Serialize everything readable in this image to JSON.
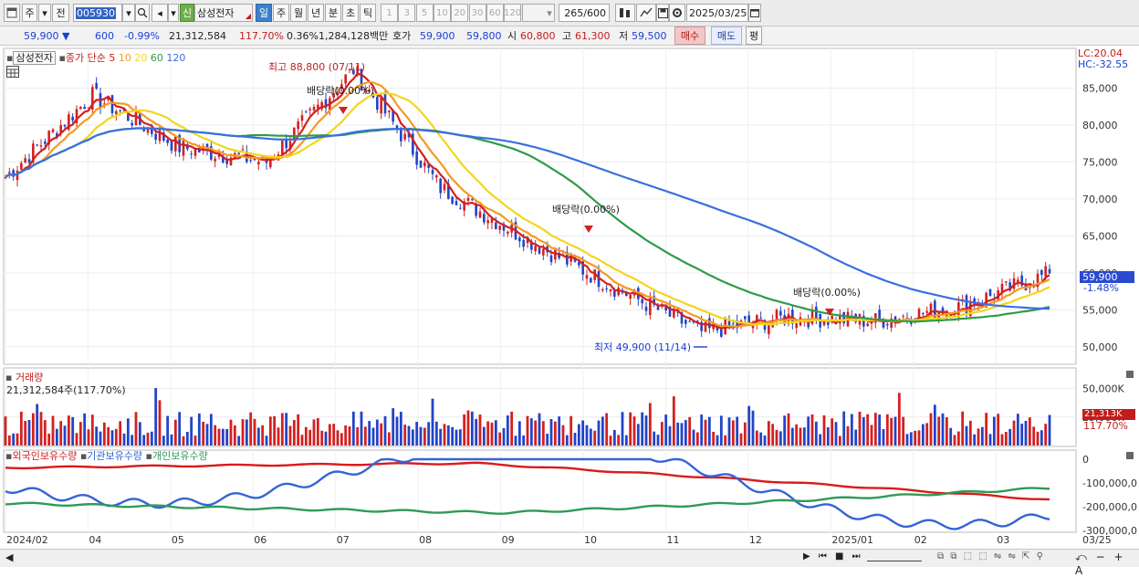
{
  "toolbar": {
    "window_icon": "window-icon",
    "market_label": "주",
    "period_label": "전",
    "code_value": "005930",
    "company_name": "삼성전자",
    "new_badge": "신",
    "period_tabs": [
      "일",
      "주",
      "월",
      "년",
      "분",
      "초",
      "틱"
    ],
    "selected_period": "일",
    "interval_buttons": [
      "1",
      "3",
      "5",
      "10",
      "20",
      "30",
      "60",
      "120"
    ],
    "count_value": "265/600",
    "date_value": "2025/03/25"
  },
  "infobar": {
    "price": "59,900",
    "change": "600",
    "change_pct": "-0.99%",
    "volume": "21,312,584",
    "volume_ratio": "117.70%",
    "turnover": "0.36%",
    "trade_amount": "1,284,128백만",
    "quote_label": "호가",
    "ask": "59,900",
    "bid": "59,800",
    "open_label": "시",
    "open": "60,800",
    "high_label": "고",
    "high": "61,300",
    "low_label": "저",
    "low": "59,500",
    "buy_button": "매수",
    "sell_button": "매도",
    "avg_button": "평"
  },
  "price_pane": {
    "legend_stock": "삼성전자",
    "legend_ma_prefix": "종가 단순",
    "ma_periods": [
      "5",
      "10",
      "20",
      "60",
      "120"
    ],
    "ma_colors": [
      "#d42020",
      "#f59a1f",
      "#f2d61c",
      "#2e9b47",
      "#3b6fe0"
    ],
    "high_marker": "최고 88,800 (07/11)",
    "low_marker": "최저 49,900 (11/14)",
    "dividend_labels": [
      "배당락(0.00%)",
      "배당락(0.00%)",
      "배당락(0.00%)"
    ],
    "lc_label": "LC:20.04",
    "hc_label": "HC:-32.55",
    "current_price_tag": "59,900",
    "current_change_tag": "-1.48%",
    "y_ticks": [
      "85,000",
      "80,000",
      "75,000",
      "70,000",
      "65,000",
      "60,000",
      "55,000",
      "50,000"
    ]
  },
  "volume_pane": {
    "title": "거래량",
    "current_label": "21,312,584주(117.70%)",
    "y_ticks": [
      "50,000K",
      "25,000K"
    ],
    "tag_value": "21,313K",
    "tag_pct": "117.70%"
  },
  "holdings_pane": {
    "legend": [
      "외국인보유수량",
      "기관보유수량",
      "개인보유수량"
    ],
    "colors": [
      "#d91b1b",
      "#3564d6",
      "#2f9a57"
    ],
    "y_ticks": [
      "0",
      "-100,000,0",
      "-200,000,0",
      "-300,000,0"
    ]
  },
  "x_axis": {
    "labels": [
      "2024/02",
      "04",
      "05",
      "06",
      "07",
      "08",
      "09",
      "10",
      "11",
      "12",
      "2025/01",
      "02",
      "03"
    ],
    "last_label": "03/25"
  },
  "chart_data": {
    "type": "candlestick",
    "title": "삼성전자",
    "categories": [
      "2024/02",
      "04",
      "05",
      "06",
      "07",
      "08",
      "09",
      "10",
      "11",
      "12",
      "2025/01",
      "02",
      "03",
      "03/25"
    ],
    "ohlc_anchor_closes": [
      73000,
      84000,
      77000,
      75000,
      87500,
      71500,
      64500,
      58000,
      52000,
      54000,
      53500,
      55500,
      59900
    ],
    "price_range": [
      48000,
      90000
    ],
    "last_close": 59900,
    "series": [
      {
        "name": "5",
        "color": "#d42020"
      },
      {
        "name": "10",
        "color": "#f59a1f"
      },
      {
        "name": "20",
        "color": "#f2d61c"
      },
      {
        "name": "60",
        "color": "#2e9b47"
      },
      {
        "name": "120",
        "color": "#3b6fe0"
      }
    ],
    "volume_max": 50000
  }
}
